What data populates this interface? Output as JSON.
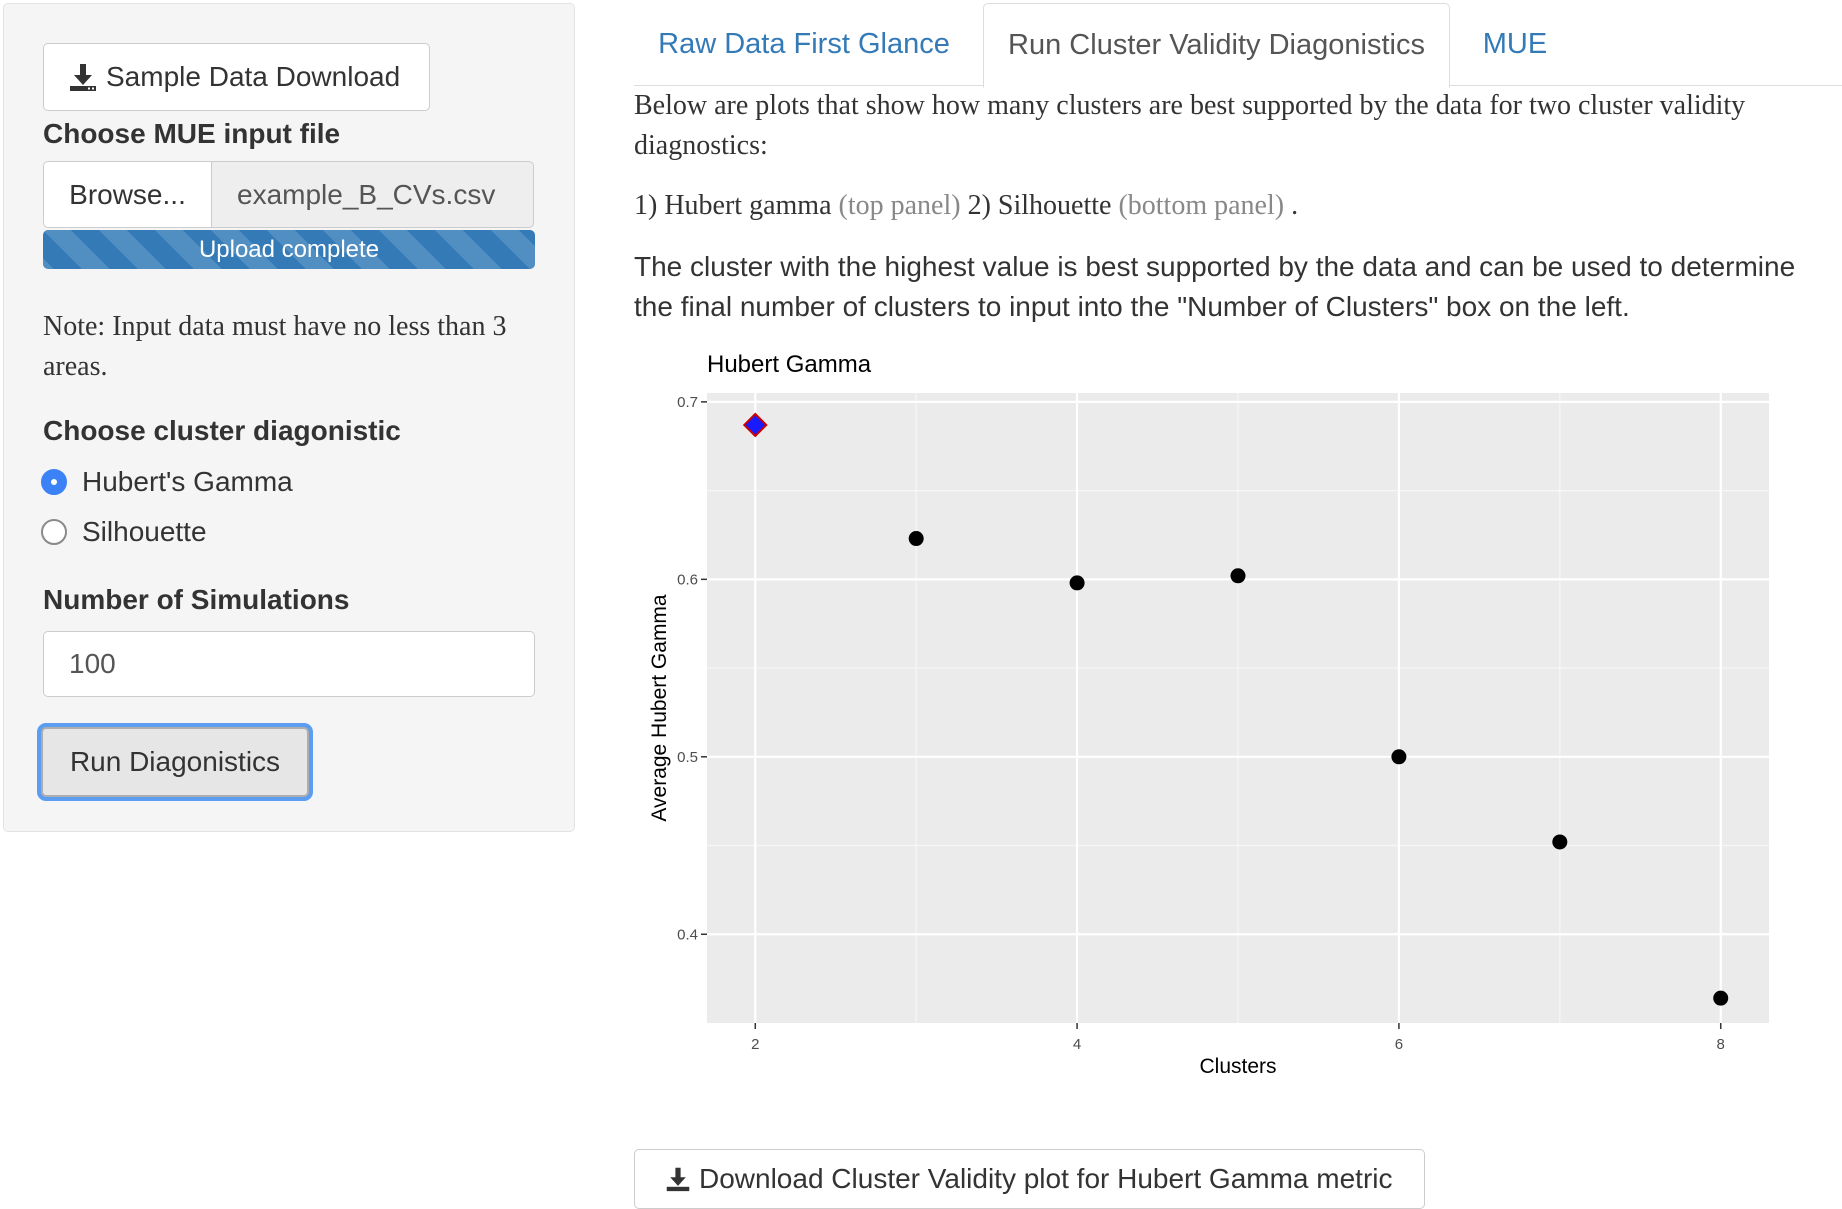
{
  "sidebar": {
    "sample_download_label": "Sample Data Download",
    "file_input_label": "Choose MUE input file",
    "browse_label": "Browse...",
    "file_name": "example_B_CVs.csv",
    "upload_status": "Upload complete",
    "upload_progress": 1.0,
    "note": "Note: Input data must have no less than 3 areas.",
    "diagnostic_label": "Choose cluster diagonistic",
    "diagnostic_options": [
      {
        "label": "Hubert's Gamma",
        "selected": true
      },
      {
        "label": "Silhouette",
        "selected": false
      }
    ],
    "simulations_label": "Number of Simulations",
    "simulations_value": "100",
    "run_label": "Run Diagonistics"
  },
  "tabs": [
    {
      "label": "Raw Data First Glance",
      "active": false
    },
    {
      "label": "Run Cluster Validity Diagonistics",
      "active": true
    },
    {
      "label": "MUE",
      "active": false
    }
  ],
  "main": {
    "intro": "Below are plots that show how many clusters are best supported by the data for two cluster validity diagnostics:",
    "list_item1": "1) Hubert gamma",
    "list_item1_note": "(top panel)",
    "list_item2": "2) Silhouette",
    "list_item2_note": "(bottom panel)",
    "list_end": ".",
    "explanation": "The cluster with the highest value is best supported by the data and can be used to determine the final number of clusters to input into the \"Number of Clusters\" box on the left.",
    "download_label": "Download Cluster Validity plot for Hubert Gamma metric"
  },
  "colors": {
    "link": "#337ab7",
    "progress": "#337ab7",
    "highlight_point": "#1a1aff",
    "highlight_outline": "#cc0000",
    "plot_panel": "#ebebeb"
  },
  "chart_data": {
    "type": "scatter",
    "title": "Hubert Gamma",
    "xlabel": "Clusters",
    "ylabel": "Average Hubert Gamma",
    "x": [
      2,
      3,
      4,
      5,
      6,
      7,
      8
    ],
    "y": [
      0.687,
      0.623,
      0.598,
      0.602,
      0.5,
      0.452,
      0.364
    ],
    "highlight_x": 2,
    "xlim": [
      1.7,
      8.3
    ],
    "ylim": [
      0.35,
      0.705
    ],
    "x_ticks": [
      2,
      4,
      6,
      8
    ],
    "y_ticks": [
      0.4,
      0.5,
      0.6,
      0.7
    ],
    "x_tick_labels": [
      "2",
      "4",
      "6",
      "8"
    ],
    "y_tick_labels": [
      "0.4",
      "0.5",
      "0.6",
      "0.7"
    ],
    "grid": true
  }
}
